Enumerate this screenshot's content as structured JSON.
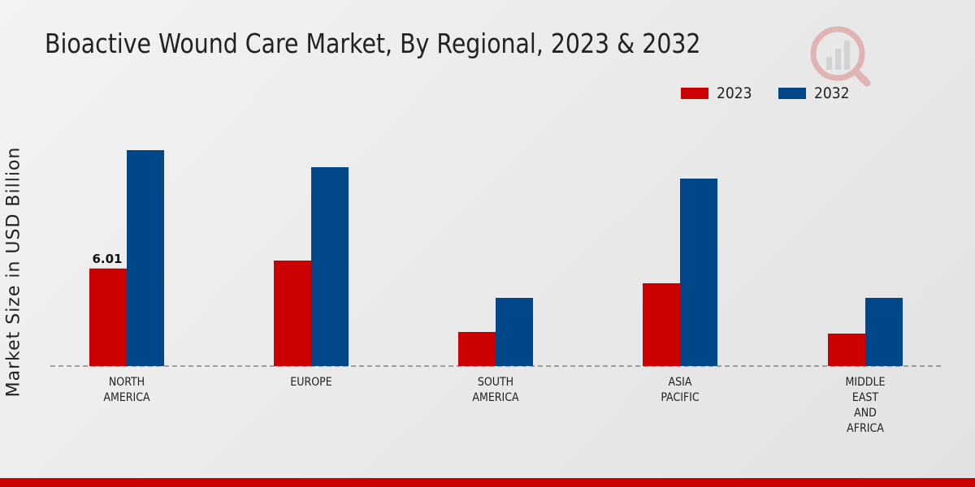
{
  "chart_data": {
    "type": "bar",
    "title": "Bioactive Wound Care Market, By Regional, 2023 & 2032",
    "xlabel": "",
    "ylabel": "Market Size in USD Billion",
    "categories": [
      [
        "NORTH",
        "AMERICA"
      ],
      [
        "EUROPE"
      ],
      [
        "SOUTH",
        "AMERICA"
      ],
      [
        "ASIA",
        "PACIFIC"
      ],
      [
        "MIDDLE",
        "EAST",
        "AND",
        "AFRICA"
      ]
    ],
    "series": [
      {
        "name": "2023",
        "color": "#cc0000",
        "values": [
          6.01,
          6.5,
          2.1,
          5.1,
          2.0
        ]
      },
      {
        "name": "2032",
        "color": "#00478a",
        "values": [
          13.3,
          12.25,
          4.2,
          11.55,
          4.2
        ]
      }
    ],
    "data_labels": [
      {
        "series": 0,
        "index": 0,
        "text": "6.01"
      }
    ],
    "ylim": [
      0,
      16
    ],
    "grid": false,
    "legend_position": "top-right"
  }
}
